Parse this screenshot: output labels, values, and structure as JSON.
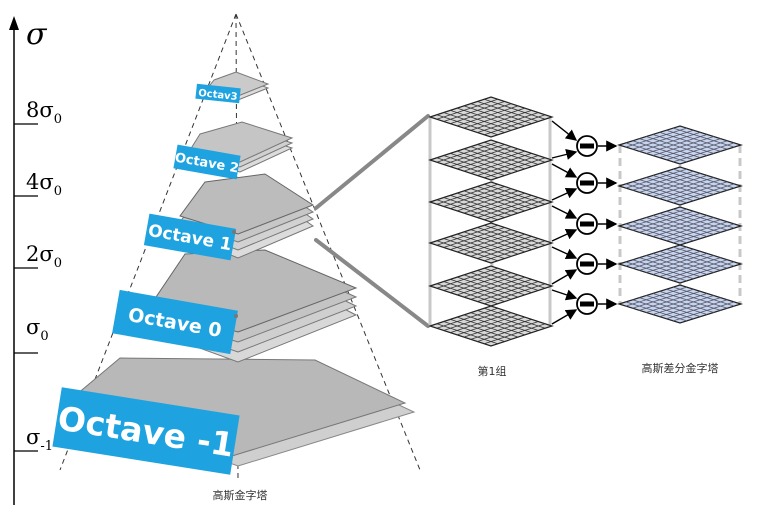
{
  "axis": {
    "symbol": "σ",
    "ticks": [
      {
        "base": "8σ",
        "sub": "0"
      },
      {
        "base": "4σ",
        "sub": "0"
      },
      {
        "base": "2σ",
        "sub": "0"
      },
      {
        "base": "σ",
        "sub": "0"
      },
      {
        "base": "σ",
        "sub": "-1"
      }
    ]
  },
  "octaves": [
    "Octav3",
    "Octave 2",
    "Octave 1",
    "Octave 0",
    "Octave -1"
  ],
  "captions": {
    "pyramid": "高斯金字塔",
    "group": "第1组",
    "dog": "高斯差分金字塔"
  },
  "colors": {
    "label_fill": "#1ea3e0",
    "layer_fill": "#c8c8c8",
    "gaussian_grid": "#d0d0d0",
    "dog_grid": "#c6d4ee"
  }
}
